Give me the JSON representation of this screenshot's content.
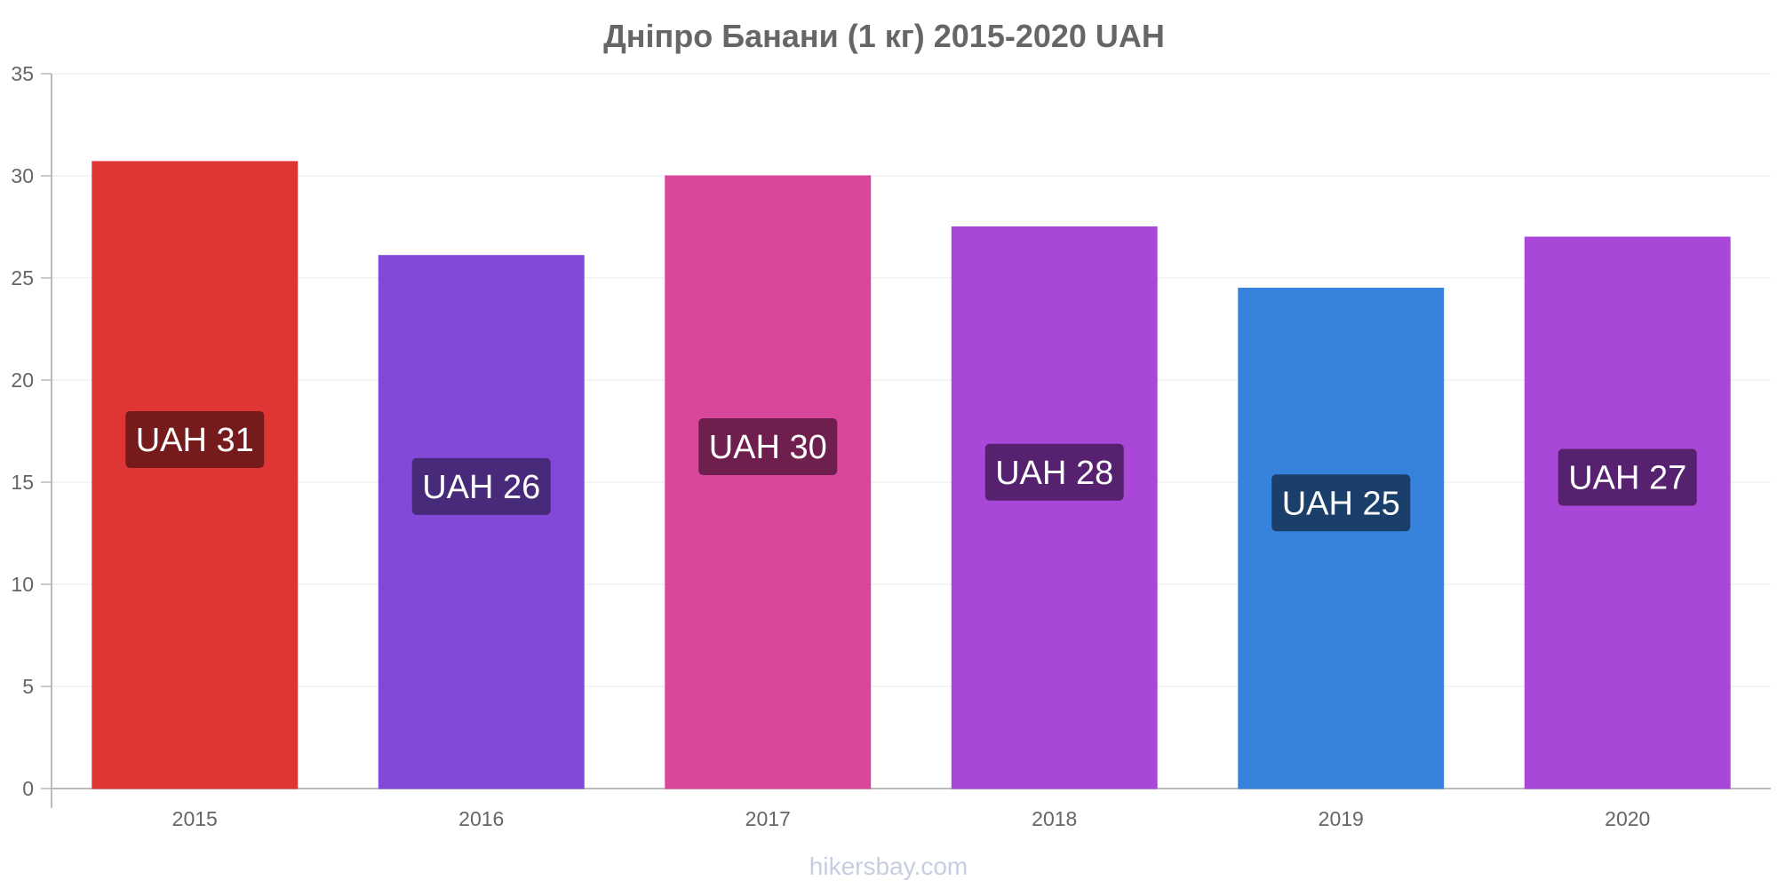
{
  "chart_data": {
    "type": "bar",
    "title": "Дніпро Банани (1 кг) 2015-2020 UAH",
    "xlabel": "",
    "ylabel": "",
    "ylim": [
      0,
      35
    ],
    "yticks": [
      "0",
      "5",
      "10",
      "15",
      "20",
      "25",
      "30",
      "35"
    ],
    "grid": true,
    "categories": [
      "2015",
      "2016",
      "2017",
      "2018",
      "2019",
      "2020"
    ],
    "values": [
      30.7,
      26.1,
      30.0,
      27.5,
      24.5,
      27.0
    ],
    "data_labels": [
      "UAH 31",
      "UAH 26",
      "UAH 30",
      "UAH 28",
      "UAH 25",
      "UAH 27"
    ],
    "bar_colors": [
      "#e03535",
      "#8249d8",
      "#d8479a",
      "#a948d8",
      "#3682dc",
      "#a948d8"
    ],
    "label_colors": [
      "#761b1b",
      "#472a7a",
      "#6e1f4e",
      "#56226f",
      "#1b3f6b",
      "#56226f"
    ]
  },
  "watermark": "hikersbay.com"
}
